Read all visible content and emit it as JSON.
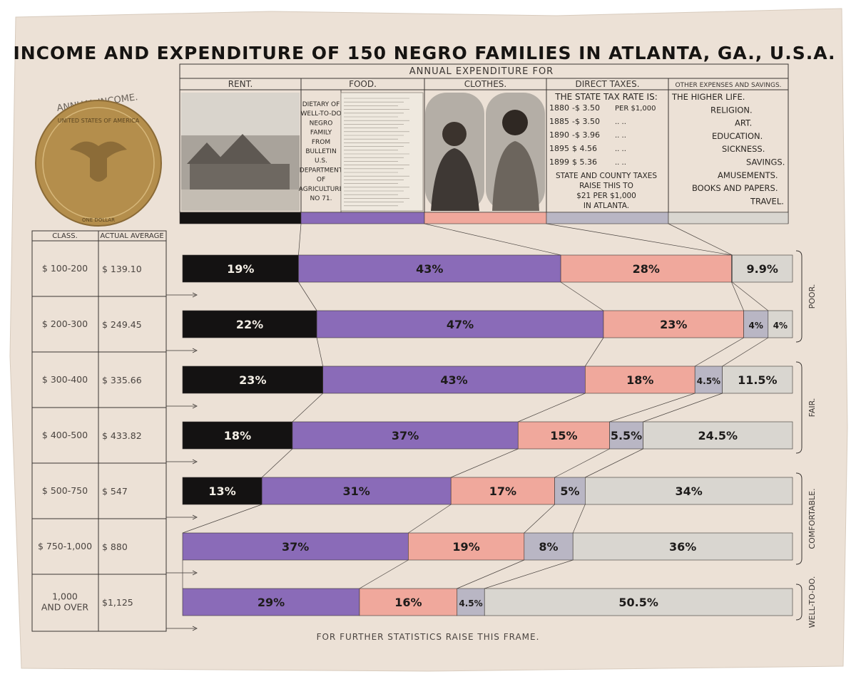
{
  "title": "INCOME AND EXPENDITURE OF 150 NEGRO FAMILIES IN ATLANTA, GA., U.S.A.",
  "footer": "FOR FURTHER STATISTICS RAISE THIS FRAME.",
  "annual_income": {
    "label": "ANNUAL INCOME.",
    "coin_top": "UNITED STATES OF AMERICA",
    "coin_bottom": "ONE DOLLAR"
  },
  "expenditure_header": "ANNUAL EXPENDITURE FOR",
  "categories": [
    {
      "name": "RENT.",
      "color": "#141212"
    },
    {
      "name": "FOOD.",
      "color": "#8a6bb8"
    },
    {
      "name": "CLOTHES.",
      "color": "#f0a89c"
    },
    {
      "name": "DIRECT TAXES.",
      "color": "#b9b6c4"
    },
    {
      "name": "OTHER EXPENSES AND SAVINGS.",
      "color": "#d9d6d0"
    }
  ],
  "food_panel": [
    "DIETARY OF",
    "WELL-TO-DO",
    "NEGRO",
    "FAMILY",
    "FROM",
    "BULLETIN",
    "U.S.",
    "DEPARTMENT",
    "OF",
    "AGRICULTURE",
    "NO 71."
  ],
  "taxes_panel": {
    "heading": "THE STATE TAX RATE IS:",
    "rates": [
      {
        "year": "1880",
        "rate": "-$ 3.50",
        "per": "PER $1,000"
      },
      {
        "year": "1885",
        "rate": "-$ 3.50",
        "per": ".. .."
      },
      {
        "year": "1890",
        "rate": "-$ 3.96",
        "per": ".. .."
      },
      {
        "year": "1895",
        "rate": "$ 4.56",
        "per": ".. .."
      },
      {
        "year": "1899",
        "rate": "$ 5.36",
        "per": ".. .."
      }
    ],
    "note": [
      "STATE AND COUNTY TAXES",
      "RAISE THIS TO",
      "$21 PER $1,000",
      "IN ATLANTA."
    ]
  },
  "other_panel": [
    "THE HIGHER LIFE.",
    "RELIGION.",
    "ART.",
    "EDUCATION.",
    "SICKNESS.",
    "SAVINGS.",
    "AMUSEMENTS.",
    "BOOKS AND PAPERS.",
    "TRAVEL."
  ],
  "table_headers": {
    "class": "CLASS.",
    "average": "ACTUAL AVERAGE"
  },
  "groups": [
    {
      "label": "POOR.",
      "rows": [
        0,
        1
      ]
    },
    {
      "label": "FAIR.",
      "rows": [
        2,
        3
      ]
    },
    {
      "label": "COMFORTABLE.",
      "rows": [
        4,
        5
      ]
    },
    {
      "label": "WELL-TO-DO.",
      "rows": [
        6
      ]
    }
  ],
  "chart_data": {
    "type": "bar",
    "title": "INCOME AND EXPENDITURE OF 150 NEGRO FAMILIES IN ATLANTA, GA., U.S.A.",
    "xlabel": "",
    "ylabel": "",
    "stacked": true,
    "unit": "%",
    "categories": [
      "$ 100-200",
      "$ 200-300",
      "$ 300-400",
      "$ 400-500",
      "$ 500-750",
      "$ 750-1,000",
      "1,000 AND OVER"
    ],
    "averages": [
      "$ 139.10",
      "$ 249.45",
      "$ 335.66",
      "$ 433.82",
      "$ 547",
      "$ 880",
      "$1,125"
    ],
    "series": [
      {
        "name": "RENT.",
        "values": [
          19,
          22,
          23,
          18,
          13,
          0,
          0
        ],
        "labels": [
          "19%",
          "22%",
          "23%",
          "18%",
          "13%",
          "",
          ""
        ]
      },
      {
        "name": "FOOD.",
        "values": [
          43,
          47,
          43,
          37,
          31,
          37,
          29
        ],
        "labels": [
          "43%",
          "47%",
          "43%",
          "37%",
          "31%",
          "37%",
          "29%"
        ]
      },
      {
        "name": "CLOTHES.",
        "values": [
          28,
          23,
          18,
          15,
          17,
          19,
          16
        ],
        "labels": [
          "28%",
          "23%",
          "18%",
          "15%",
          "17%",
          "19%",
          "16%"
        ]
      },
      {
        "name": "DIRECT TAXES.",
        "values": [
          0.1,
          4,
          4.5,
          5.5,
          5,
          8,
          4.5
        ],
        "labels": [
          "",
          "4%",
          "4.5%",
          "5.5%",
          "5%",
          "8%",
          "4.5%"
        ]
      },
      {
        "name": "OTHER EXPENSES AND SAVINGS.",
        "values": [
          9.9,
          4,
          11.5,
          24.5,
          34,
          36,
          50.5
        ],
        "labels": [
          "9.9%",
          "4%",
          "11.5%",
          "24.5%",
          "34%",
          "36%",
          "50.5%"
        ]
      }
    ],
    "xlim": [
      0,
      100
    ],
    "legend": "top",
    "grid": false
  }
}
